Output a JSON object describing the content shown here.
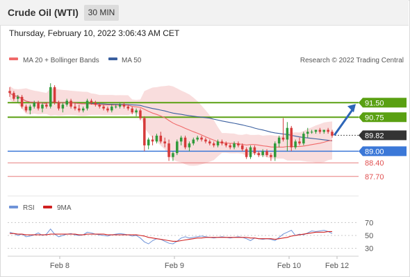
{
  "header": {
    "symbol": "Crude Oil (WTI)",
    "interval": "30 MIN",
    "datetime": "Thursday, February 10, 2022 3:06:43 AM CET"
  },
  "legend": {
    "ma20": "MA 20 + Bollinger Bands",
    "ma50": "MA 50",
    "credit": "Research © 2022 Trading Central",
    "rsi": "RSI",
    "rsi_ma": "9MA"
  },
  "colors": {
    "resistance": "#5aa012",
    "support": "#3b78d8",
    "target_red": "#e05050",
    "bollinger": "#f8d7d7",
    "ma20": "#f06a6a",
    "ma50": "#3a5f9f",
    "candle_green": "#2f9a3a",
    "candle_red": "#d63a3a",
    "rsi": "#6f93d8",
    "rsi_ma": "#d02020",
    "last_price": "#333333",
    "arrow": "#2e66b8"
  },
  "chart_data": [
    {
      "type": "candlestick",
      "x_ticks": [
        "Feb 8",
        "Feb 9",
        "Feb 10",
        "Feb 12"
      ],
      "ylim": [
        86.8,
        93.4
      ],
      "levels": [
        {
          "label": "91.50",
          "value": 91.5,
          "kind": "resistance"
        },
        {
          "label": "90.75",
          "value": 90.75,
          "kind": "resistance"
        },
        {
          "label": "89.82",
          "value": 89.82,
          "kind": "last"
        },
        {
          "label": "89.00",
          "value": 89.0,
          "kind": "support"
        },
        {
          "label": "88.40",
          "value": 88.4,
          "kind": "target"
        },
        {
          "label": "87.70",
          "value": 87.7,
          "kind": "target"
        }
      ],
      "arrow": {
        "from": 89.82,
        "to": 91.5
      },
      "candles": [
        [
          92.1,
          92.3,
          91.8,
          92.0
        ],
        [
          92.0,
          92.1,
          91.6,
          91.7
        ],
        [
          91.7,
          91.9,
          91.5,
          91.8
        ],
        [
          91.8,
          91.9,
          91.2,
          91.3
        ],
        [
          91.3,
          91.4,
          91.0,
          91.1
        ],
        [
          91.1,
          91.4,
          90.9,
          91.3
        ],
        [
          91.3,
          91.6,
          91.2,
          91.5
        ],
        [
          91.5,
          91.6,
          91.1,
          91.2
        ],
        [
          91.2,
          91.5,
          91.0,
          91.4
        ],
        [
          91.4,
          91.5,
          91.2,
          91.3
        ],
        [
          91.3,
          92.5,
          91.2,
          92.3
        ],
        [
          92.3,
          92.4,
          91.4,
          91.5
        ],
        [
          91.5,
          91.6,
          91.1,
          91.2
        ],
        [
          91.2,
          91.5,
          91.0,
          91.4
        ],
        [
          91.4,
          91.7,
          91.3,
          91.6
        ],
        [
          91.6,
          91.7,
          91.2,
          91.3
        ],
        [
          91.3,
          91.5,
          91.1,
          91.2
        ],
        [
          91.2,
          91.4,
          91.0,
          91.1
        ],
        [
          91.1,
          91.3,
          91.0,
          91.2
        ],
        [
          91.2,
          91.7,
          91.1,
          91.6
        ],
        [
          91.6,
          91.7,
          91.4,
          91.5
        ],
        [
          91.5,
          91.6,
          91.3,
          91.4
        ],
        [
          91.4,
          91.5,
          91.2,
          91.3
        ],
        [
          91.3,
          91.4,
          91.1,
          91.2
        ],
        [
          91.2,
          91.3,
          91.0,
          91.1
        ],
        [
          91.1,
          91.4,
          91.0,
          91.3
        ],
        [
          91.3,
          91.4,
          91.2,
          91.3
        ],
        [
          91.3,
          91.5,
          91.2,
          91.4
        ],
        [
          91.4,
          91.5,
          91.2,
          91.3
        ],
        [
          91.3,
          91.4,
          91.1,
          91.2
        ],
        [
          91.2,
          91.3,
          90.9,
          91.0
        ],
        [
          91.0,
          91.2,
          90.8,
          91.1
        ],
        [
          91.1,
          91.2,
          90.6,
          90.7
        ],
        [
          90.7,
          90.8,
          89.0,
          89.3
        ],
        [
          89.3,
          89.7,
          89.1,
          89.6
        ],
        [
          89.6,
          89.8,
          89.3,
          89.5
        ],
        [
          89.5,
          89.9,
          89.4,
          89.8
        ],
        [
          89.8,
          90.0,
          89.4,
          89.5
        ],
        [
          89.5,
          89.7,
          89.2,
          89.4
        ],
        [
          89.4,
          89.6,
          88.5,
          88.7
        ],
        [
          88.7,
          89.0,
          88.5,
          88.9
        ],
        [
          88.9,
          89.6,
          88.8,
          89.5
        ],
        [
          89.5,
          89.8,
          89.3,
          89.7
        ],
        [
          89.7,
          89.8,
          89.1,
          89.2
        ],
        [
          89.2,
          89.5,
          89.0,
          89.4
        ],
        [
          89.4,
          89.7,
          89.3,
          89.6
        ],
        [
          89.6,
          89.8,
          89.5,
          89.7
        ],
        [
          89.7,
          89.8,
          89.5,
          89.6
        ],
        [
          89.6,
          89.7,
          89.4,
          89.5
        ],
        [
          89.5,
          89.6,
          89.3,
          89.4
        ],
        [
          89.4,
          89.5,
          89.2,
          89.3
        ],
        [
          89.3,
          89.6,
          89.2,
          89.5
        ],
        [
          89.5,
          89.6,
          89.3,
          89.4
        ],
        [
          89.4,
          89.5,
          89.2,
          89.3
        ],
        [
          89.3,
          89.4,
          89.1,
          89.2
        ],
        [
          89.2,
          89.5,
          89.1,
          89.4
        ],
        [
          89.4,
          89.5,
          89.2,
          89.3
        ],
        [
          89.3,
          89.4,
          89.0,
          89.1
        ],
        [
          89.1,
          89.2,
          88.6,
          88.7
        ],
        [
          88.7,
          89.3,
          88.6,
          89.2
        ],
        [
          89.2,
          89.3,
          88.8,
          88.9
        ],
        [
          88.9,
          89.0,
          88.7,
          88.8
        ],
        [
          88.8,
          89.1,
          88.7,
          89.0
        ],
        [
          89.0,
          89.1,
          88.7,
          88.8
        ],
        [
          88.8,
          88.9,
          88.5,
          88.7
        ],
        [
          88.7,
          89.5,
          88.5,
          89.4
        ],
        [
          89.4,
          89.8,
          89.2,
          89.7
        ],
        [
          89.7,
          90.7,
          89.5,
          89.6
        ],
        [
          89.6,
          90.5,
          89.0,
          90.2
        ],
        [
          90.2,
          90.3,
          89.0,
          89.2
        ],
        [
          89.2,
          89.6,
          89.1,
          89.5
        ],
        [
          89.5,
          89.7,
          89.3,
          89.4
        ],
        [
          89.4,
          90.0,
          89.3,
          89.9
        ],
        [
          89.9,
          90.2,
          89.7,
          90.0
        ],
        [
          90.0,
          90.1,
          89.9,
          90.0
        ],
        [
          90.0,
          90.1,
          89.9,
          90.1
        ],
        [
          90.1,
          90.2,
          89.9,
          90.0
        ],
        [
          90.0,
          90.1,
          89.9,
          90.1
        ],
        [
          90.1,
          90.2,
          89.9,
          90.0
        ],
        [
          90.0,
          90.1,
          89.7,
          89.8
        ]
      ]
    },
    {
      "type": "line",
      "ylim": [
        20,
        80
      ],
      "y_ticks": [
        70,
        50,
        30
      ],
      "series": [
        {
          "name": "RSI",
          "values": [
            55,
            53,
            50,
            52,
            48,
            49,
            51,
            54,
            50,
            52,
            60,
            52,
            48,
            50,
            52,
            53,
            51,
            50,
            51,
            55,
            54,
            52,
            51,
            50,
            49,
            51,
            52,
            53,
            52,
            51,
            49,
            50,
            46,
            40,
            37,
            42,
            45,
            44,
            41,
            38,
            37,
            41,
            46,
            48,
            46,
            47,
            48,
            49,
            48,
            47,
            46,
            47,
            48,
            47,
            46,
            47,
            48,
            47,
            45,
            42,
            46,
            45,
            44,
            45,
            44,
            42,
            47,
            52,
            55,
            58,
            50,
            52,
            51,
            54,
            57,
            56,
            57,
            58,
            56,
            53
          ]
        },
        {
          "name": "9MA",
          "values": [
            53,
            53,
            52,
            52,
            51,
            51,
            51,
            51,
            51,
            51,
            52,
            52,
            52,
            52,
            52,
            52,
            52,
            51,
            51,
            52,
            52,
            52,
            52,
            52,
            51,
            51,
            51,
            51,
            51,
            51,
            51,
            51,
            50,
            49,
            47,
            46,
            45,
            44,
            43,
            42,
            41,
            41,
            42,
            43,
            44,
            45,
            46,
            46,
            47,
            47,
            47,
            47,
            47,
            47,
            47,
            47,
            47,
            47,
            47,
            46,
            46,
            45,
            45,
            45,
            45,
            44,
            45,
            46,
            47,
            49,
            50,
            51,
            52,
            53,
            54,
            55,
            55,
            55,
            56,
            56
          ]
        }
      ]
    }
  ]
}
